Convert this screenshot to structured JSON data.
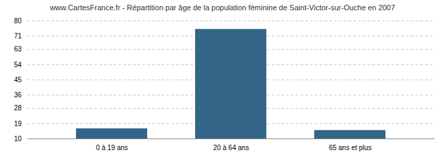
{
  "chart_data": {
    "type": "bar",
    "title": "www.CartesFrance.fr - Répartition par âge de la population féminine de Saint-Victor-sur-Ouche en 2007",
    "categories": [
      "0 à 19 ans",
      "20 à 64 ans",
      "65 ans et plus"
    ],
    "values": [
      16,
      75,
      15
    ],
    "color": "#336688",
    "ylim": [
      10,
      80
    ],
    "yticks": [
      10,
      19,
      28,
      36,
      45,
      54,
      63,
      71,
      80
    ],
    "grid": true
  }
}
